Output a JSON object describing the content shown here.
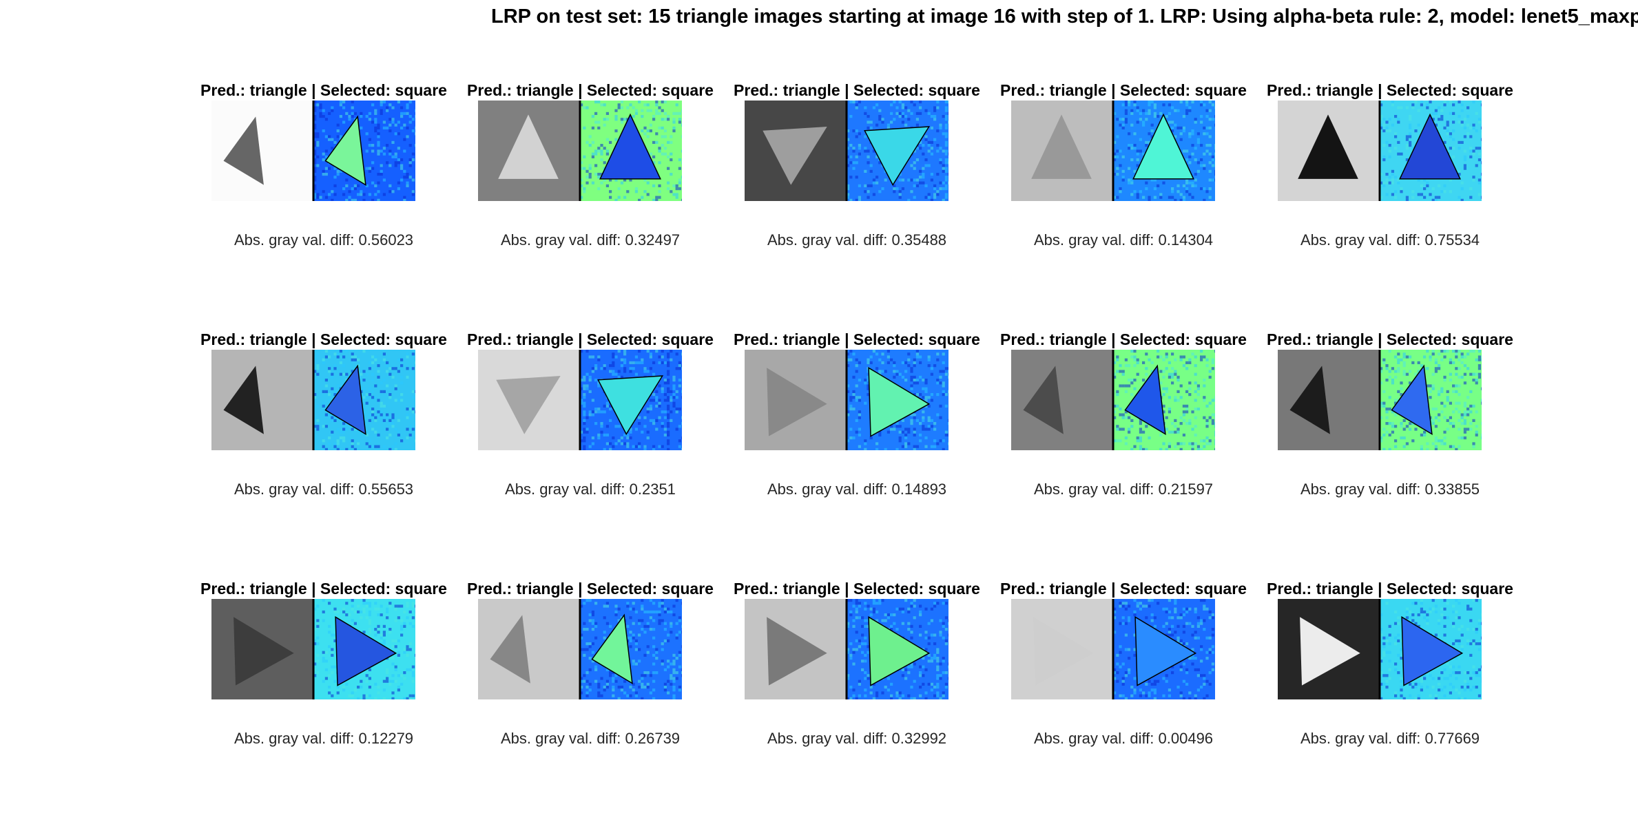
{
  "figure": {
    "title": "LRP on test set: 15 triangle images starting at image 16 with step of 1. LRP: Using alpha-beta rule: 2, model: lenet5_maxp"
  },
  "panels": [
    {
      "title": "Pred.: triangle | Selected: square",
      "caption": "Abs. gray val. diff: 0.56023",
      "bg_gray": "#fbfbfb",
      "fg_gray": "#666666",
      "heat_bg": "#1560ff",
      "heat_fg": "#7af59a",
      "orientation": "left"
    },
    {
      "title": "Pred.: triangle | Selected: square",
      "caption": "Abs. gray val. diff: 0.32497",
      "bg_gray": "#808080",
      "fg_gray": "#d2d2d2",
      "heat_bg": "#7fff80",
      "heat_fg": "#1e4de6",
      "orientation": "up"
    },
    {
      "title": "Pred.: triangle | Selected: square",
      "caption": "Abs. gray val. diff: 0.35488",
      "bg_gray": "#474747",
      "fg_gray": "#9e9e9e",
      "heat_bg": "#1e78ff",
      "heat_fg": "#3ad8e8",
      "orientation": "down"
    },
    {
      "title": "Pred.: triangle | Selected: square",
      "caption": "Abs. gray val. diff: 0.14304",
      "bg_gray": "#bdbdbd",
      "fg_gray": "#999999",
      "heat_bg": "#1e88ff",
      "heat_fg": "#4ff5d6",
      "orientation": "up"
    },
    {
      "title": "Pred.: triangle | Selected: square",
      "caption": "Abs. gray val. diff: 0.75534",
      "bg_gray": "#d4d4d4",
      "fg_gray": "#141414",
      "heat_bg": "#3fd6f2",
      "heat_fg": "#2347d6",
      "orientation": "up"
    },
    {
      "title": "Pred.: triangle | Selected: square",
      "caption": "Abs. gray val. diff: 0.55653",
      "bg_gray": "#b5b5b5",
      "fg_gray": "#222222",
      "heat_bg": "#31c6f5",
      "heat_fg": "#2c62e6",
      "orientation": "left"
    },
    {
      "title": "Pred.: triangle | Selected: square",
      "caption": "Abs. gray val. diff: 0.2351",
      "bg_gray": "#d9d9d9",
      "fg_gray": "#a6a6a6",
      "heat_bg": "#1a6cff",
      "heat_fg": "#3ee0e0",
      "orientation": "down"
    },
    {
      "title": "Pred.: triangle | Selected: square",
      "caption": "Abs. gray val. diff: 0.14893",
      "bg_gray": "#a8a8a8",
      "fg_gray": "#898989",
      "heat_bg": "#1e7cff",
      "heat_fg": "#62f2b0",
      "orientation": "right"
    },
    {
      "title": "Pred.: triangle | Selected: square",
      "caption": "Abs. gray val. diff: 0.21597",
      "bg_gray": "#808080",
      "fg_gray": "#4c4c4c",
      "heat_bg": "#78ff86",
      "heat_fg": "#1f57ea",
      "orientation": "left"
    },
    {
      "title": "Pred.: triangle | Selected: square",
      "caption": "Abs. gray val. diff: 0.33855",
      "bg_gray": "#787878",
      "fg_gray": "#1c1c1c",
      "heat_bg": "#78ff86",
      "heat_fg": "#2f6af0",
      "orientation": "left"
    },
    {
      "title": "Pred.: triangle | Selected: square",
      "caption": "Abs. gray val. diff: 0.12279",
      "bg_gray": "#5e5e5e",
      "fg_gray": "#3d3d3d",
      "heat_bg": "#3de0f0",
      "heat_fg": "#2556e0",
      "orientation": "right"
    },
    {
      "title": "Pred.: triangle | Selected: square",
      "caption": "Abs. gray val. diff: 0.26739",
      "bg_gray": "#c9c9c9",
      "fg_gray": "#878787",
      "heat_bg": "#1c72ff",
      "heat_fg": "#72f59a",
      "orientation": "left"
    },
    {
      "title": "Pred.: triangle | Selected: square",
      "caption": "Abs. gray val. diff: 0.32992",
      "bg_gray": "#c4c4c4",
      "fg_gray": "#7a7a7a",
      "heat_bg": "#1c72ff",
      "heat_fg": "#6ef08e",
      "orientation": "right"
    },
    {
      "title": "Pred.: triangle | Selected: square",
      "caption": "Abs. gray val. diff: 0.00496",
      "bg_gray": "#d0d0d0",
      "fg_gray": "#cecece",
      "heat_bg": "#1b6cff",
      "heat_fg": "#2a8cff",
      "orientation": "right"
    },
    {
      "title": "Pred.: triangle | Selected: square",
      "caption": "Abs. gray val. diff: 0.77669",
      "bg_gray": "#262626",
      "fg_gray": "#ececec",
      "heat_bg": "#3ad8f2",
      "heat_fg": "#2c66f0",
      "orientation": "right"
    }
  ]
}
